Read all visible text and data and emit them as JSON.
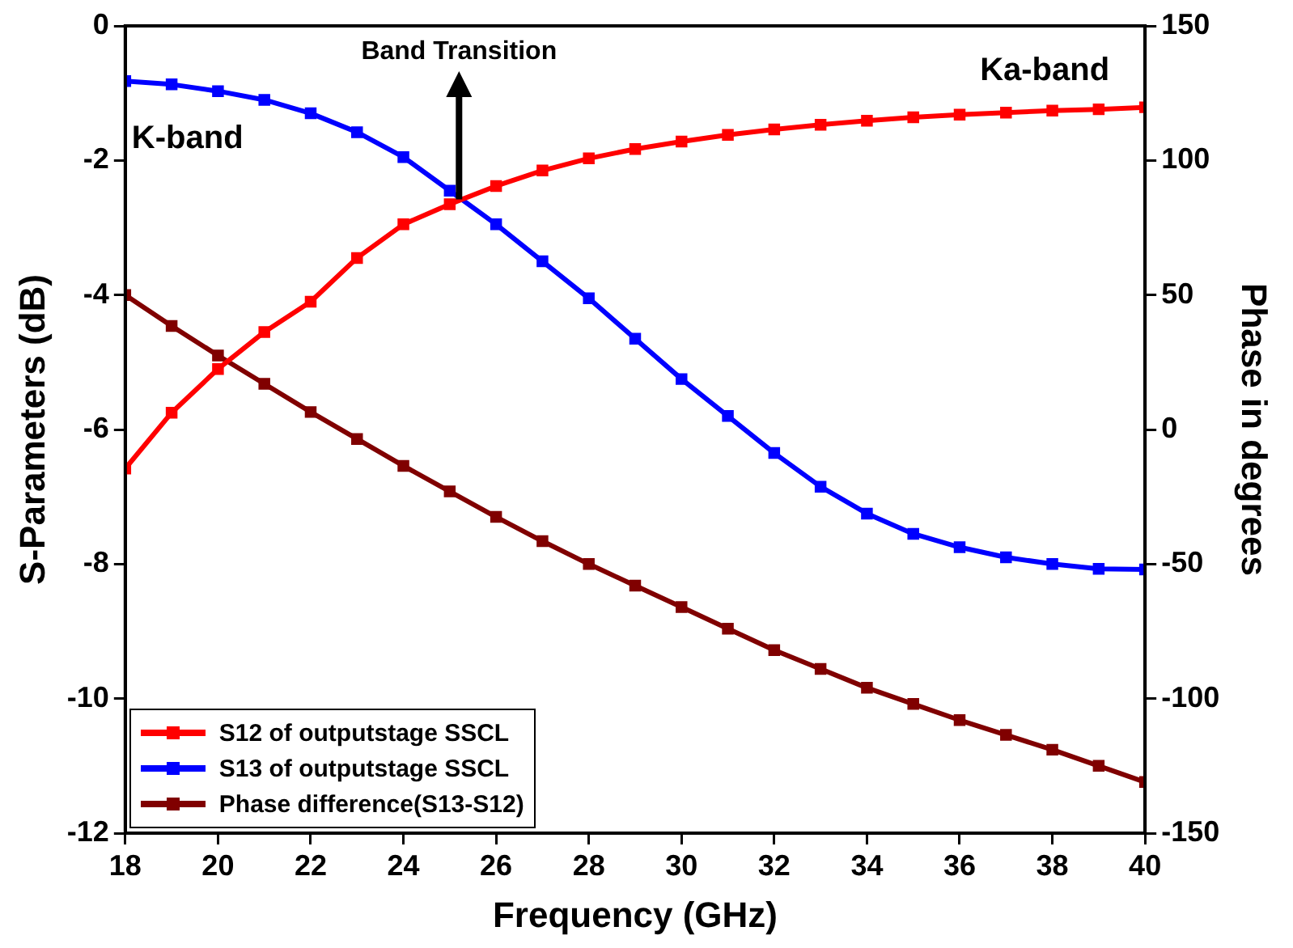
{
  "chart_data": {
    "type": "line",
    "xlabel": "Frequency (GHz)",
    "ylabel": "S-Parameters (dB)",
    "y2label": "Phase in degrees",
    "x": [
      18,
      19,
      20,
      21,
      22,
      23,
      24,
      25,
      26,
      27,
      28,
      29,
      30,
      31,
      32,
      33,
      34,
      35,
      36,
      37,
      38,
      39,
      40
    ],
    "series": [
      {
        "name": "S12 of outputstage SSCL",
        "color": "#ff0000",
        "values": [
          -6.58,
          -5.75,
          -5.1,
          -4.55,
          -4.1,
          -3.45,
          -2.95,
          -2.65,
          -2.38,
          -2.15,
          -1.97,
          -1.83,
          -1.72,
          -1.62,
          -1.54,
          -1.47,
          -1.41,
          -1.36,
          -1.32,
          -1.29,
          -1.26,
          -1.24,
          -1.21
        ]
      },
      {
        "name": "S13 of outputstage SSCL",
        "color": "#0000ff",
        "values": [
          -0.82,
          -0.87,
          -0.97,
          -1.1,
          -1.3,
          -1.58,
          -1.95,
          -2.45,
          -2.95,
          -3.5,
          -4.05,
          -4.65,
          -5.25,
          -5.8,
          -6.35,
          -6.85,
          -7.25,
          -7.55,
          -7.75,
          -7.9,
          -8.0,
          -8.07,
          -8.08
        ]
      },
      {
        "name": "Phase difference(S13-S12)",
        "color": "#800000",
        "axis": "y2",
        "values": [
          50,
          38.5,
          27.5,
          17,
          6.5,
          -3.5,
          -13.5,
          -23,
          -32.5,
          -41.5,
          -50,
          -58,
          -66,
          -74,
          -82,
          -89,
          -96,
          -102,
          -108,
          -113.5,
          -119,
          -125,
          -131
        ]
      }
    ],
    "xlim": [
      18,
      40
    ],
    "xticks": [
      18,
      20,
      22,
      24,
      26,
      28,
      30,
      32,
      34,
      36,
      38,
      40
    ],
    "ylim": [
      -12,
      0
    ],
    "yticks": [
      -12,
      -10,
      -8,
      -6,
      -4,
      -2,
      0
    ],
    "y2lim": [
      -150,
      150
    ],
    "y2ticks": [
      -150,
      -100,
      -50,
      0,
      50,
      100,
      150
    ],
    "annotations": [
      {
        "text": "Band Transition",
        "x": 25.2,
        "y": -2.58
      },
      "K-band",
      "Ka-band"
    ],
    "grid": false,
    "legend": "bottom left",
    "marker": "square",
    "line_style": "solid"
  }
}
